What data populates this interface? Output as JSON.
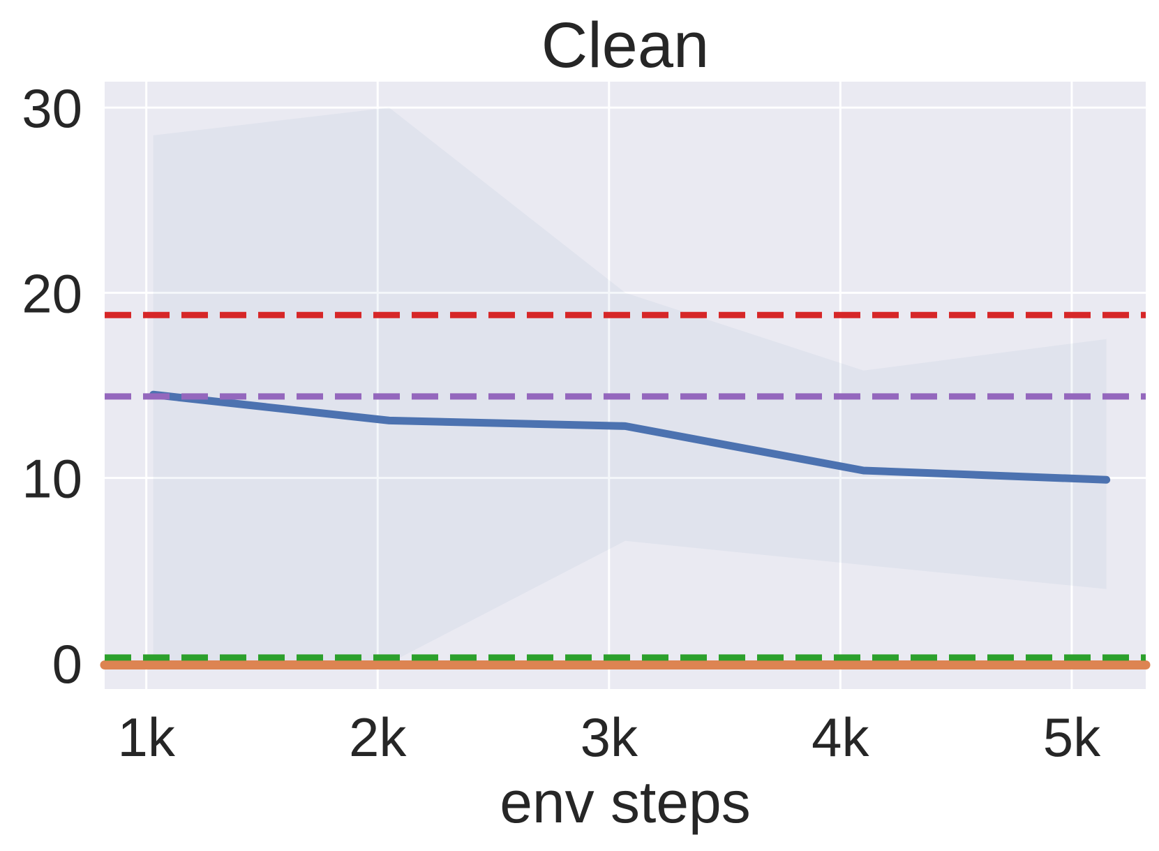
{
  "chart_data": {
    "type": "line",
    "title": "Clean",
    "xlabel": "env steps",
    "ylabel": "",
    "x_ticks": [
      {
        "value": 1000,
        "label": "1k"
      },
      {
        "value": 2000,
        "label": "2k"
      },
      {
        "value": 3000,
        "label": "3k"
      },
      {
        "value": 4000,
        "label": "4k"
      },
      {
        "value": 5000,
        "label": "5k"
      }
    ],
    "y_ticks": [
      {
        "value": 0,
        "label": "0"
      },
      {
        "value": 10,
        "label": "10"
      },
      {
        "value": 20,
        "label": "20"
      },
      {
        "value": 30,
        "label": "30"
      }
    ],
    "xlim": [
      820,
      5320
    ],
    "ylim": [
      -1.4,
      31.4
    ],
    "grid": true,
    "background": "#eaeaf2",
    "series": [
      {
        "color": "#4c72b0",
        "style": "solid",
        "x": [
          1030,
          2050,
          3070,
          4100,
          5150
        ],
        "y": [
          14.5,
          13.1,
          12.8,
          10.4,
          9.9
        ],
        "band_upper": [
          28.5,
          30.0,
          20.0,
          15.8,
          17.5
        ],
        "band_lower": [
          0.0,
          0.0,
          6.6,
          5.3,
          4.0
        ]
      },
      {
        "color": "#dd8452",
        "style": "solid",
        "x": [
          820,
          5320
        ],
        "y": [
          -0.1,
          -0.1
        ]
      }
    ],
    "reference_lines": [
      {
        "y": 18.8,
        "color": "#d62728",
        "style": "dashed"
      },
      {
        "y": 14.4,
        "color": "#9467bd",
        "style": "dashed"
      },
      {
        "y": 0.3,
        "color": "#2ca02c",
        "style": "dashed"
      }
    ]
  }
}
